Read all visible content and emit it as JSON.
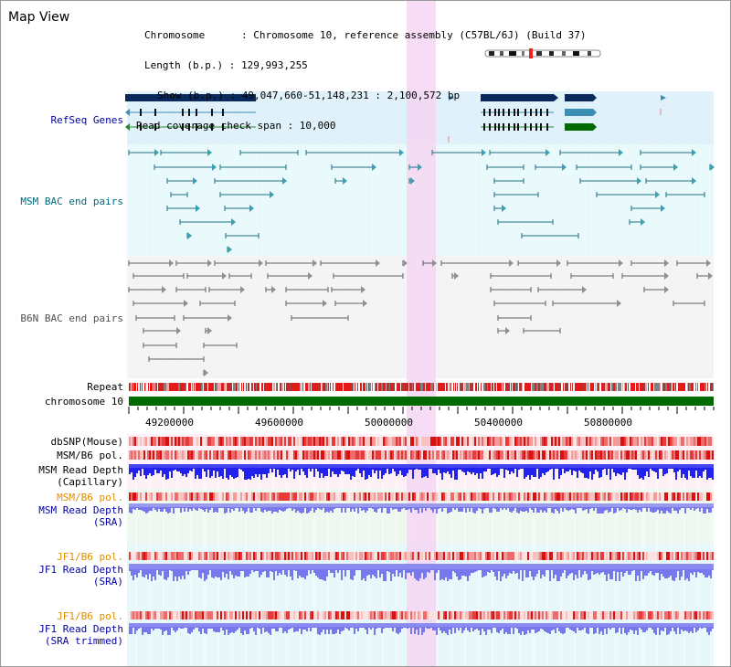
{
  "title": "Map View",
  "info": {
    "chromosome": "Chromosome      : Chromosome 10, reference assembly (C57BL/6J) (Build 37)",
    "length": "Length (b.p.) : 129,993,255",
    "show": "Show (b.p.) : 49,047,660-51,148,231 : 2,100,572 bp",
    "coverage": "Read coverage check span : 10,000"
  },
  "tracks": {
    "refseq": "RefSeq Genes",
    "msm_bac": "MSM BAC end pairs",
    "b6n_bac": "B6N BAC end pairs",
    "repeat": "Repeat",
    "chromosome": "chromosome 10",
    "dbsnp": "dbSNP(Mouse)",
    "msm_b6_pol": "MSM/B6 pol.",
    "msm_depth_cap_1": "MSM Read Depth",
    "msm_depth_cap_2": "(Capillary)",
    "msm_b6_pol_2": "MSM/B6 pol.",
    "msm_depth_sra_1": "MSM Read Depth",
    "msm_depth_sra_2": "(SRA)",
    "jf1_b6_pol": "JF1/B6 pol.",
    "jf1_depth_sra_1": "JF1 Read Depth",
    "jf1_depth_sra_2": "(SRA)",
    "jf1_b6_pol_2": "JF1/B6 pol.",
    "jf1_depth_trim_1": "JF1 Read Depth",
    "jf1_depth_trim_2": "(SRA trimmed)"
  },
  "axis_ticks": [
    "49200000",
    "49600000",
    "50000000",
    "50400000",
    "50800000"
  ],
  "colors": {
    "gene_dark": "#0a2a5e",
    "gene_teal": "#3b8fb5",
    "gene_green": "#006a00",
    "chromosome_bar": "#006a00",
    "highlight": "#f6d6f3",
    "msm_depth_cap": "#2222ee",
    "depth_light": "#7777ee"
  }
}
